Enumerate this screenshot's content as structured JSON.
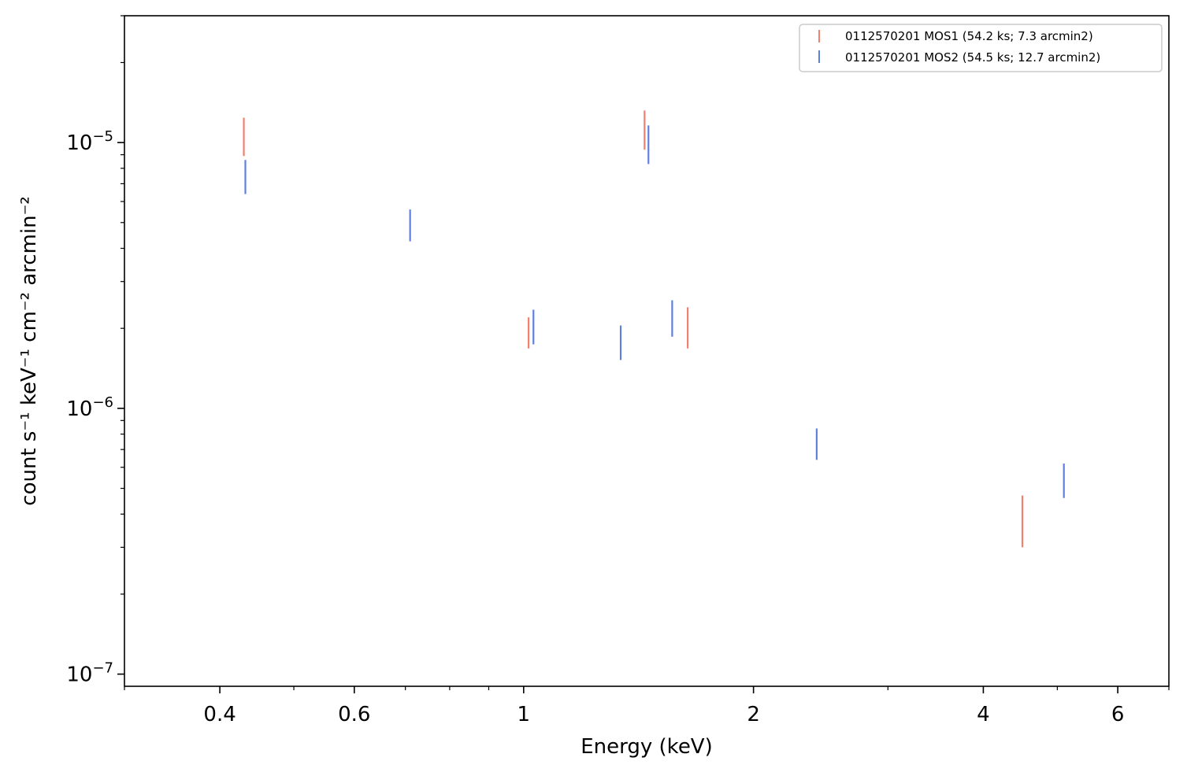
{
  "chart_data": {
    "type": "scatter",
    "title": "",
    "xlabel": "Energy (keV)",
    "ylabel": "count s⁻¹ keV⁻¹ cm⁻² arcmin⁻²",
    "xscale": "log",
    "yscale": "log",
    "xlim": [
      0.3,
      7.0
    ],
    "ylim": [
      9e-08,
      3e-05
    ],
    "grid": false,
    "legend_position": "top-right",
    "x_ticks": [
      {
        "value": 0.4,
        "label": "0.4"
      },
      {
        "value": 0.6,
        "label": "0.6"
      },
      {
        "value": 1,
        "label": "1"
      },
      {
        "value": 2,
        "label": "2"
      },
      {
        "value": 4,
        "label": "4"
      },
      {
        "value": 6,
        "label": "6"
      }
    ],
    "x_minor_ticks": [
      0.3,
      0.5,
      0.7,
      0.8,
      0.9,
      3,
      5,
      7
    ],
    "y_ticks": [
      {
        "value": 1e-07,
        "base": "10",
        "exp": "−7"
      },
      {
        "value": 1e-06,
        "base": "10",
        "exp": "−6"
      },
      {
        "value": 1e-05,
        "base": "10",
        "exp": "−5"
      }
    ],
    "y_minor_ticks": [
      2e-07,
      3e-07,
      4e-07,
      5e-07,
      6e-07,
      7e-07,
      8e-07,
      9e-07,
      2e-06,
      3e-06,
      4e-06,
      5e-06,
      6e-06,
      7e-06,
      8e-06,
      9e-06,
      2e-05,
      3e-05
    ],
    "series": [
      {
        "name": "0112570201 MOS1 (54.2 ks; 7.3 arcmin2)",
        "color": "#f08070",
        "points": [
          {
            "x": 0.43,
            "ylo": 8.9e-06,
            "yhi": 1.24e-05
          },
          {
            "x": 1.015,
            "ylo": 1.68e-06,
            "yhi": 2.2e-06
          },
          {
            "x": 1.44,
            "ylo": 9.4e-06,
            "yhi": 1.32e-05
          },
          {
            "x": 1.64,
            "ylo": 1.68e-06,
            "yhi": 2.4e-06
          },
          {
            "x": 4.5,
            "ylo": 3e-07,
            "yhi": 4.7e-07
          }
        ]
      },
      {
        "name": "0112570201 MOS2 (54.5 ks; 12.7 arcmin2)",
        "color": "#6080e0",
        "points": [
          {
            "x": 0.432,
            "ylo": 6.4e-06,
            "yhi": 8.6e-06
          },
          {
            "x": 0.71,
            "ylo": 4.25e-06,
            "yhi": 5.6e-06
          },
          {
            "x": 1.03,
            "ylo": 1.74e-06,
            "yhi": 2.35e-06
          },
          {
            "x": 1.34,
            "ylo": 1.52e-06,
            "yhi": 2.05e-06
          },
          {
            "x": 1.457,
            "ylo": 8.3e-06,
            "yhi": 1.16e-05
          },
          {
            "x": 1.565,
            "ylo": 1.86e-06,
            "yhi": 2.55e-06
          },
          {
            "x": 2.42,
            "ylo": 6.4e-07,
            "yhi": 8.4e-07
          },
          {
            "x": 5.1,
            "ylo": 4.6e-07,
            "yhi": 6.2e-07
          }
        ]
      }
    ]
  }
}
